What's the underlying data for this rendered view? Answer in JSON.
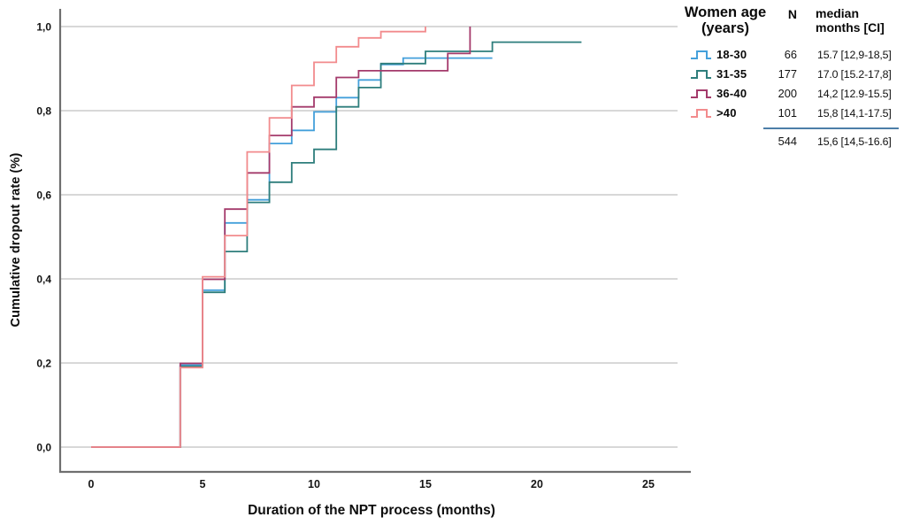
{
  "figure": {
    "background": "#ffffff"
  },
  "legend": {
    "header": {
      "age_line1": "Women age",
      "age_line2": "(years)",
      "n": "N",
      "median_line1": "median",
      "median_line2": "months [CI]"
    }
  },
  "chart_data": {
    "type": "line",
    "style": "step",
    "title": "",
    "xlabel": "Duration of the NPT process (months)",
    "ylabel": "Cumulative dropout rate (%)",
    "xlim": [
      -1.4,
      26.5
    ],
    "ylim": [
      -0.06,
      1.05
    ],
    "xticks": [
      0,
      5,
      10,
      15,
      20,
      25
    ],
    "ytick_values": [
      0,
      0.2,
      0.4,
      0.6,
      0.8,
      1.0
    ],
    "ytick_labels": [
      "0,0",
      "0,2",
      "0,4",
      "0,6",
      "0,8",
      "1,0"
    ],
    "grid": "horizontal-only",
    "legend_position": "outside-top-right",
    "series": [
      {
        "name": "18-30",
        "color": "#44a0db",
        "n": 66,
        "median_months_ci": "15.7 [12,9-18,5]",
        "end_x": 18,
        "steps": [
          [
            0,
            0
          ],
          [
            4,
            0.195
          ],
          [
            5,
            0.373
          ],
          [
            6,
            0.533
          ],
          [
            7,
            0.588
          ],
          [
            8,
            0.722
          ],
          [
            9,
            0.753
          ],
          [
            10,
            0.797
          ],
          [
            11,
            0.831
          ],
          [
            12,
            0.873
          ],
          [
            13,
            0.91
          ],
          [
            14,
            0.925
          ]
        ]
      },
      {
        "name": "31-35",
        "color": "#2e7e7c",
        "n": 177,
        "median_months_ci": "17.0 [15.2-17,8]",
        "end_x": 22,
        "steps": [
          [
            0,
            0
          ],
          [
            4,
            0.192
          ],
          [
            5,
            0.368
          ],
          [
            6,
            0.465
          ],
          [
            7,
            0.582
          ],
          [
            8,
            0.63
          ],
          [
            9,
            0.676
          ],
          [
            10,
            0.708
          ],
          [
            11,
            0.809
          ],
          [
            12,
            0.855
          ],
          [
            13,
            0.912
          ],
          [
            15,
            0.941
          ],
          [
            18,
            0.963
          ]
        ]
      },
      {
        "name": "36-40",
        "color": "#a43a6b",
        "n": 200,
        "median_months_ci": "14,2 [12.9-15.5]",
        "end_x": 17,
        "steps": [
          [
            0,
            0
          ],
          [
            4,
            0.199
          ],
          [
            5,
            0.399
          ],
          [
            6,
            0.566
          ],
          [
            7,
            0.652
          ],
          [
            8,
            0.741
          ],
          [
            9,
            0.809
          ],
          [
            10,
            0.832
          ],
          [
            11,
            0.879
          ],
          [
            12,
            0.895
          ],
          [
            16,
            0.936
          ],
          [
            17,
            1.0
          ]
        ]
      },
      {
        "name": ">40",
        "color": "#f28b8d",
        "n": 101,
        "median_months_ci": "15,8 [14,1-17.5]",
        "end_x": 15,
        "steps": [
          [
            0,
            0
          ],
          [
            4,
            0.189
          ],
          [
            5,
            0.405
          ],
          [
            6,
            0.503
          ],
          [
            7,
            0.702
          ],
          [
            8,
            0.783
          ],
          [
            9,
            0.86
          ],
          [
            10,
            0.915
          ],
          [
            11,
            0.952
          ],
          [
            12,
            0.973
          ],
          [
            13,
            0.988
          ],
          [
            15,
            1.0
          ]
        ]
      }
    ],
    "total": {
      "n": 544,
      "median_months_ci": "15,6 [14,5-16.6]"
    }
  },
  "style_colors": {
    "gridline": "#cbcbcb",
    "spine": "#6f6f6f",
    "tick_text": "#141414",
    "legend_separator": "#4d7ea8"
  }
}
